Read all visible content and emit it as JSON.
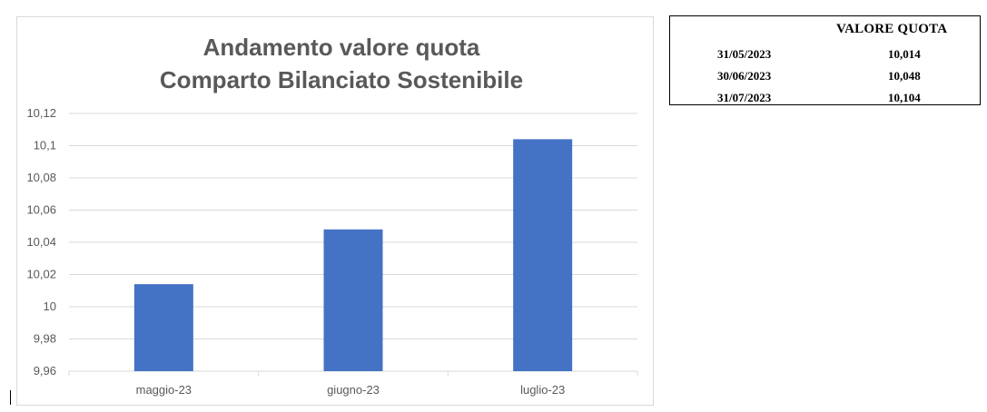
{
  "chart_data": {
    "type": "bar",
    "title": [
      "Andamento valore quota",
      "Comparto Bilanciato Sostenibile"
    ],
    "categories": [
      "maggio-23",
      "giugno-23",
      "luglio-23"
    ],
    "values": [
      10.014,
      10.048,
      10.104
    ],
    "ylim": [
      9.96,
      10.12
    ],
    "yticks": [
      9.96,
      9.98,
      10,
      10.02,
      10.04,
      10.06,
      10.08,
      10.1,
      10.12
    ],
    "ytick_labels": [
      "9,96",
      "9,98",
      "10",
      "10,02",
      "10,04",
      "10,06",
      "10,08",
      "10,1",
      "10,12"
    ],
    "xlabel": "",
    "ylabel": "",
    "grid": true,
    "legend": false,
    "bar_color": "#4472c4",
    "grid_color": "#d9d9d9",
    "title_color": "#595959",
    "tick_color": "#595959"
  },
  "table": {
    "header": "VALORE QUOTA",
    "rows": [
      {
        "date": "31/05/2023",
        "value": "10,014"
      },
      {
        "date": "30/06/2023",
        "value": "10,048"
      },
      {
        "date": "31/07/2023",
        "value": "10,104"
      }
    ]
  }
}
